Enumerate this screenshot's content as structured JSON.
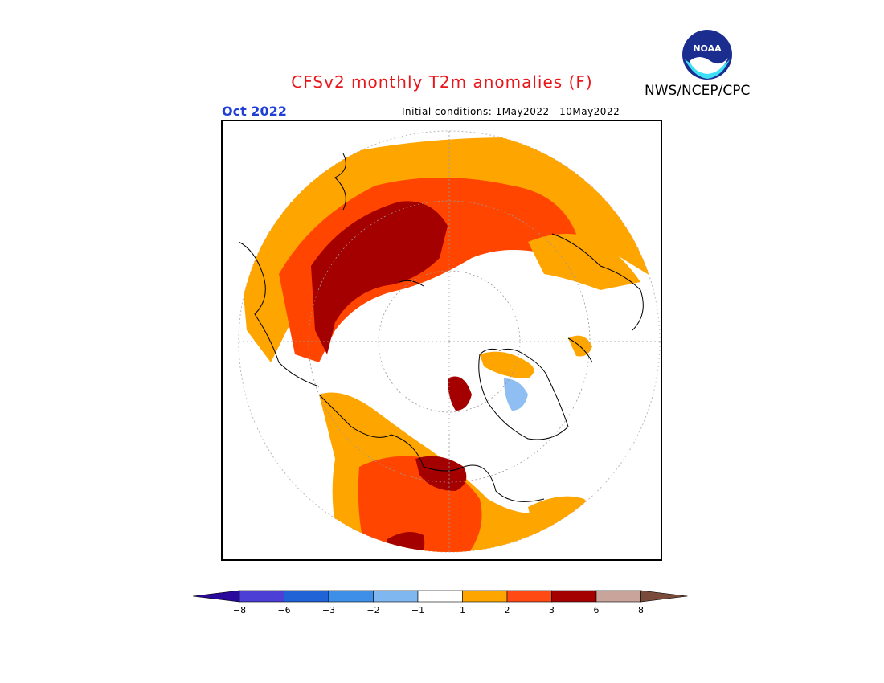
{
  "title": "CFSv2 monthly T2m anomalies (F)",
  "organization": "NWS/NCEP/CPC",
  "logo_text": "NOAA",
  "valid_month": "Oct 2022",
  "initial_conditions": "Initial conditions: 1May2022—10May2022",
  "colors": {
    "title": "#e8161b",
    "month": "#1f3fd6",
    "ocean": "#ffffff",
    "coast": "#000000",
    "neutral": "#ffffff",
    "warm1": "#ffa500",
    "warm2": "#ff4500",
    "warm3": "#a50000",
    "warm4": "#c8a49a",
    "cool1": "#8fbef3"
  },
  "colorbar": {
    "bins": [
      {
        "color": "#2a0a9c"
      },
      {
        "color": "#4b3fd6"
      },
      {
        "color": "#1f63d6"
      },
      {
        "color": "#3e8fe8"
      },
      {
        "color": "#7fb8f0"
      },
      {
        "color": "#ffffff"
      },
      {
        "color": "#ffa500"
      },
      {
        "color": "#ff4a14"
      },
      {
        "color": "#a50000"
      },
      {
        "color": "#c8a49a"
      },
      {
        "color": "#7a4a3a"
      }
    ],
    "tick_labels": [
      "−8",
      "−6",
      "−3",
      "−2",
      "−1",
      "1",
      "2",
      "3",
      "6",
      "8"
    ]
  }
}
